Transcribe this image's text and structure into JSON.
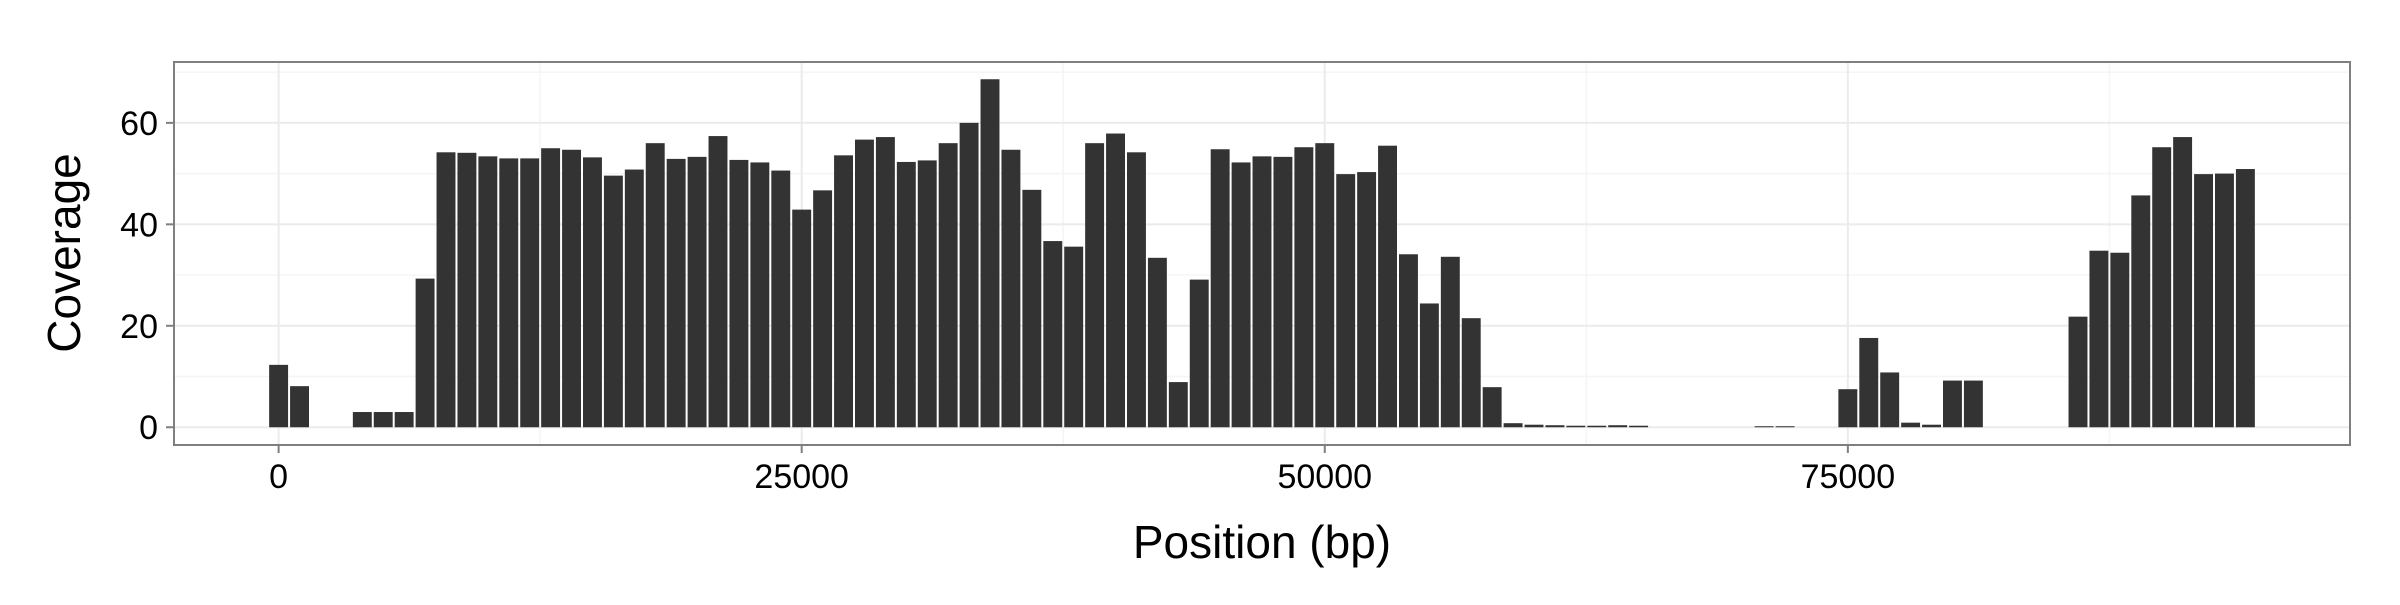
{
  "chart_data": {
    "type": "bar",
    "xlabel": "Position (bp)",
    "ylabel": "Coverage",
    "xlim": [
      -5000,
      99000
    ],
    "ylim": [
      -3.5,
      72
    ],
    "xticks": [
      0,
      25000,
      50000,
      75000
    ],
    "yticks": [
      0,
      20,
      40,
      60
    ],
    "bin_width": 1000,
    "grid": true,
    "colors": {
      "bar": "#333333",
      "panel_background": "#ffffff",
      "grid_major": "#ebebeb",
      "grid_minor": "#f5f5f5",
      "border": "#7f7f7f"
    },
    "bins": [
      {
        "x": 0,
        "y": 12.3
      },
      {
        "x": 1000,
        "y": 8.1
      },
      {
        "x": 2000,
        "y": 0
      },
      {
        "x": 3000,
        "y": 0
      },
      {
        "x": 4000,
        "y": 3.0
      },
      {
        "x": 5000,
        "y": 3.0
      },
      {
        "x": 6000,
        "y": 3.0
      },
      {
        "x": 7000,
        "y": 29.3
      },
      {
        "x": 8000,
        "y": 54.2
      },
      {
        "x": 9000,
        "y": 54.1
      },
      {
        "x": 10000,
        "y": 53.4
      },
      {
        "x": 11000,
        "y": 53.0
      },
      {
        "x": 12000,
        "y": 53.0
      },
      {
        "x": 13000,
        "y": 55.0
      },
      {
        "x": 14000,
        "y": 54.7
      },
      {
        "x": 15000,
        "y": 53.2
      },
      {
        "x": 16000,
        "y": 49.6
      },
      {
        "x": 17000,
        "y": 50.8
      },
      {
        "x": 18000,
        "y": 56.0
      },
      {
        "x": 19000,
        "y": 52.9
      },
      {
        "x": 20000,
        "y": 53.3
      },
      {
        "x": 21000,
        "y": 57.4
      },
      {
        "x": 22000,
        "y": 52.7
      },
      {
        "x": 23000,
        "y": 52.2
      },
      {
        "x": 24000,
        "y": 50.6
      },
      {
        "x": 25000,
        "y": 42.9
      },
      {
        "x": 26000,
        "y": 46.7
      },
      {
        "x": 27000,
        "y": 53.6
      },
      {
        "x": 28000,
        "y": 56.7
      },
      {
        "x": 29000,
        "y": 57.2
      },
      {
        "x": 30000,
        "y": 52.3
      },
      {
        "x": 31000,
        "y": 52.6
      },
      {
        "x": 32000,
        "y": 56.0
      },
      {
        "x": 33000,
        "y": 60.0
      },
      {
        "x": 34000,
        "y": 68.6
      },
      {
        "x": 35000,
        "y": 54.7
      },
      {
        "x": 36000,
        "y": 46.8
      },
      {
        "x": 37000,
        "y": 36.7
      },
      {
        "x": 38000,
        "y": 35.6
      },
      {
        "x": 39000,
        "y": 56.0
      },
      {
        "x": 40000,
        "y": 57.9
      },
      {
        "x": 41000,
        "y": 54.2
      },
      {
        "x": 42000,
        "y": 33.4
      },
      {
        "x": 43000,
        "y": 8.9
      },
      {
        "x": 44000,
        "y": 29.1
      },
      {
        "x": 45000,
        "y": 54.8
      },
      {
        "x": 46000,
        "y": 52.2
      },
      {
        "x": 47000,
        "y": 53.4
      },
      {
        "x": 48000,
        "y": 53.3
      },
      {
        "x": 49000,
        "y": 55.2
      },
      {
        "x": 50000,
        "y": 56.0
      },
      {
        "x": 51000,
        "y": 49.9
      },
      {
        "x": 52000,
        "y": 50.3
      },
      {
        "x": 53000,
        "y": 55.5
      },
      {
        "x": 54000,
        "y": 34.1
      },
      {
        "x": 55000,
        "y": 24.4
      },
      {
        "x": 56000,
        "y": 33.6
      },
      {
        "x": 57000,
        "y": 21.5
      },
      {
        "x": 58000,
        "y": 7.9
      },
      {
        "x": 59000,
        "y": 0.8
      },
      {
        "x": 60000,
        "y": 0.5
      },
      {
        "x": 61000,
        "y": 0.4
      },
      {
        "x": 62000,
        "y": 0.3
      },
      {
        "x": 63000,
        "y": 0.3
      },
      {
        "x": 64000,
        "y": 0.4
      },
      {
        "x": 65000,
        "y": 0.3
      },
      {
        "x": 66000,
        "y": 0
      },
      {
        "x": 67000,
        "y": 0
      },
      {
        "x": 68000,
        "y": 0
      },
      {
        "x": 69000,
        "y": 0
      },
      {
        "x": 70000,
        "y": 0
      },
      {
        "x": 71000,
        "y": 0.2
      },
      {
        "x": 72000,
        "y": 0.2
      },
      {
        "x": 73000,
        "y": 0
      },
      {
        "x": 74000,
        "y": 0
      },
      {
        "x": 75000,
        "y": 7.5
      },
      {
        "x": 76000,
        "y": 17.6
      },
      {
        "x": 77000,
        "y": 10.8
      },
      {
        "x": 78000,
        "y": 0.9
      },
      {
        "x": 79000,
        "y": 0.5
      },
      {
        "x": 80000,
        "y": 9.2
      },
      {
        "x": 81000,
        "y": 9.2
      },
      {
        "x": 82000,
        "y": 0
      },
      {
        "x": 83000,
        "y": 0
      },
      {
        "x": 84000,
        "y": 0
      },
      {
        "x": 85000,
        "y": 0
      },
      {
        "x": 86000,
        "y": 21.8
      },
      {
        "x": 87000,
        "y": 34.8
      },
      {
        "x": 88000,
        "y": 34.4
      },
      {
        "x": 89000,
        "y": 45.7
      },
      {
        "x": 90000,
        "y": 55.2
      },
      {
        "x": 91000,
        "y": 57.2
      },
      {
        "x": 92000,
        "y": 49.9
      },
      {
        "x": 93000,
        "y": 50.0
      },
      {
        "x": 94000,
        "y": 50.9
      }
    ]
  }
}
